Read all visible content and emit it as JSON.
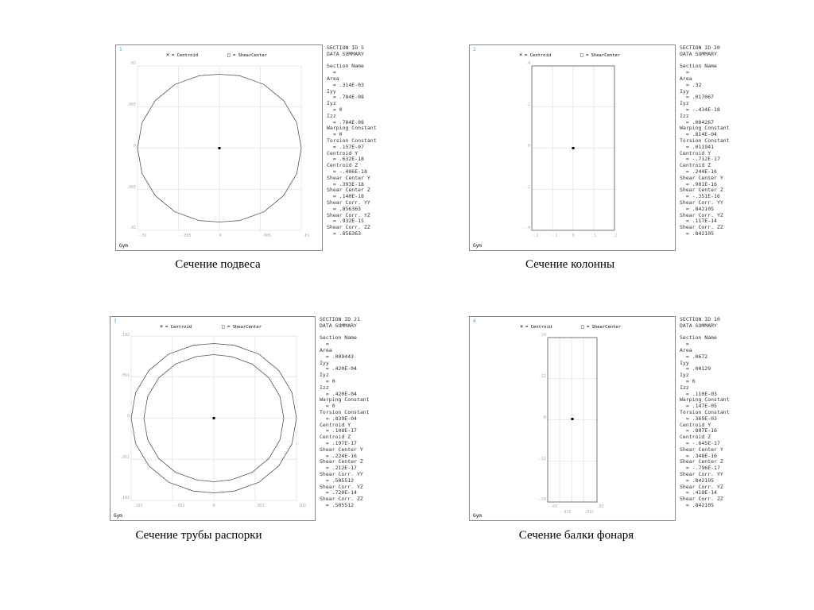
{
  "legend": {
    "centroid_label": "= Centroid",
    "shear_center_label": "= ShearCenter",
    "centroid_symbol": "×",
    "shear_center_symbol": "□"
  },
  "colors": {
    "frame": "#888888",
    "grid": "#d7d7d7",
    "outline": "#555555",
    "tick_text": "#aaaaaa",
    "panel_number": "#3da6d6",
    "summary_text": "#333333"
  },
  "sections": [
    {
      "caption": "Сечение подвеса",
      "panel_number": "1",
      "footer": "Gym",
      "shape": "solid-polygon",
      "y_ticks": [
        ".01",
        ".005",
        "0",
        "-.005",
        "-.01"
      ],
      "x_ticks": [
        "-.01",
        "-.005",
        "0",
        ".005",
        ".01"
      ],
      "summary": [
        "SECTION ID 5",
        "DATA SUMMARY",
        "",
        "Section Name",
        "  =",
        "Area",
        "  = .314E-03",
        "Iyy",
        "  = .784E-08",
        "Iyz",
        "  = 0",
        "Izz",
        "  = .784E-08",
        "Warping Constant",
        "  = 0",
        "Torsion Constant",
        "  = .157E-07",
        "Centroid Y",
        "  = .632E-18",
        "Centroid Z",
        "  = -.406E-18",
        "Shear Center Y",
        "  = .393E-18",
        "Shear Center Z",
        "  = .140E-18",
        "Shear Corr. YY",
        "  = .856363",
        "Shear Corr. YZ",
        "  = .932E-15",
        "Shear Corr. ZZ",
        "  = .856363"
      ]
    },
    {
      "caption": "Сечение колонны",
      "panel_number": "2",
      "footer": "Gym",
      "shape": "rectangle",
      "y_ticks": [
        ".4",
        ".2",
        "0",
        "-.2",
        "-.4"
      ],
      "x_ticks": [
        "-.2",
        "-.1",
        "0",
        ".1",
        ".2"
      ],
      "summary": [
        "SECTION ID 20",
        "DATA SUMMARY",
        "",
        "Section Name",
        "  =",
        "Area",
        "  = .32",
        "Iyy",
        "  = .017067",
        "Iyz",
        "  = -.434E-18",
        "Izz",
        "  = .004267",
        "Warping Constant",
        "  = .814E-04",
        "Torsion Constant",
        "  = .011941",
        "Centroid Y",
        "  = -.712E-17",
        "Centroid Z",
        "  = .244E-16",
        "Shear Center Y",
        "  = .901E-16",
        "Shear Center Z",
        "  = -.351E-16",
        "Shear Corr. YY",
        "  = .842105",
        "Shear Corr. YZ",
        "  = .117E-14",
        "Shear Corr. ZZ",
        "  = .842105"
      ]
    },
    {
      "caption": "Сечение трубы распорки",
      "panel_number": "3",
      "footer": "Gym",
      "shape": "hollow-polygon",
      "y_ticks": [
        ".102",
        ".051",
        "0",
        "-.051",
        "-.102"
      ],
      "x_ticks": [
        "-.102",
        "-.051",
        "0",
        ".051",
        ".102"
      ],
      "summary": [
        "SECTION ID 21",
        "DATA SUMMARY",
        "",
        "Section Name",
        "  =",
        "Area",
        "  = .009443",
        "Iyy",
        "  = .420E-04",
        "Iyz",
        "  = 0",
        "Izz",
        "  = .420E-04",
        "Warping Constant",
        "  = 0",
        "Torsion Constant",
        "  = .839E-04",
        "Centroid Y",
        "  = .108E-17",
        "Centroid Z",
        "  = .197E-17",
        "Shear Center Y",
        "  = .224E-16",
        "Shear Center Z",
        "  = .212E-17",
        "Shear Corr. YY",
        "  = .505512",
        "Shear Corr. YZ",
        "  = .720E-14",
        "Shear Corr. ZZ",
        "  = .505512"
      ]
    },
    {
      "caption": "Сечение балки фонаря",
      "panel_number": "4",
      "footer": "Gym",
      "shape": "narrow-rectangle",
      "y_ticks": [
        ".24",
        ".12",
        "0",
        "-.12",
        "-.24"
      ],
      "x_ticks": [
        "-.03",
        ".03"
      ],
      "x_ticks_lower": [
        "-.015",
        ".015"
      ],
      "summary": [
        "SECTION ID 10",
        "DATA SUMMARY",
        "",
        "Section Name",
        "  =",
        "Area",
        "  = .0672",
        "Iyy",
        "  = .00129",
        "Iyz",
        "  = 0",
        "Izz",
        "  = .110E-03",
        "Warping Constant",
        "  = .147E-05",
        "Torsion Constant",
        "  = .369E-03",
        "Centroid Y",
        "  = .807E-16",
        "Centroid Z",
        "  = -.645E-17",
        "Shear Center Y",
        "  = .348E-16",
        "Shear Center Z",
        "  = -.796E-17",
        "Shear Corr. YY",
        "  = .842105",
        "Shear Corr. YZ",
        "  = .418E-14",
        "Shear Corr. ZZ",
        "  = .842105"
      ]
    }
  ]
}
